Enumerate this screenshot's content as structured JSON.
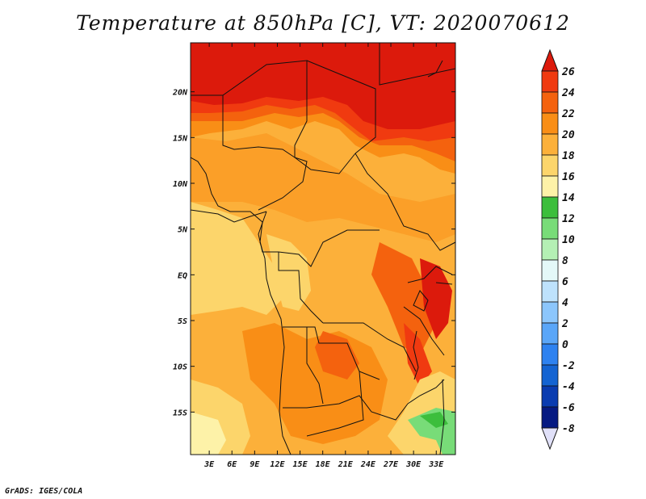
{
  "title": "Temperature at 850hPa [C], VT: 2020070612",
  "credit": "GrADS: IGES/COLA",
  "map": {
    "lon_ticks": [
      "3E",
      "6E",
      "9E",
      "12E",
      "15E",
      "18E",
      "21E",
      "24E",
      "27E",
      "30E",
      "33E"
    ],
    "lon_values": [
      3,
      6,
      9,
      12,
      15,
      18,
      21,
      24,
      27,
      30,
      33
    ],
    "lat_ticks": [
      "20N",
      "15N",
      "10N",
      "5N",
      "EQ",
      "5S",
      "10S",
      "15S"
    ],
    "lat_values": [
      20,
      15,
      10,
      5,
      0,
      -5,
      -10,
      -15
    ],
    "lon_range": [
      0,
      35
    ],
    "lat_range": [
      -20,
      25
    ]
  },
  "colorbar": {
    "labels": [
      "26",
      "24",
      "22",
      "20",
      "18",
      "16",
      "14",
      "12",
      "10",
      "8",
      "6",
      "4",
      "2",
      "0",
      "-2",
      "-4",
      "-6",
      "-8"
    ],
    "colors": [
      "#dc1a0c",
      "#f03a10",
      "#f4620e",
      "#f98e16",
      "#fcb03a",
      "#fcd56b",
      "#fdf2a8",
      "#3cbe3c",
      "#78dc78",
      "#b4f0b4",
      "#e4f8f8",
      "#bee2fc",
      "#8cc6fc",
      "#5aa6f8",
      "#2e82f0",
      "#1464d2",
      "#0a3cb0",
      "#061a82",
      "#e0e0f8"
    ]
  }
}
